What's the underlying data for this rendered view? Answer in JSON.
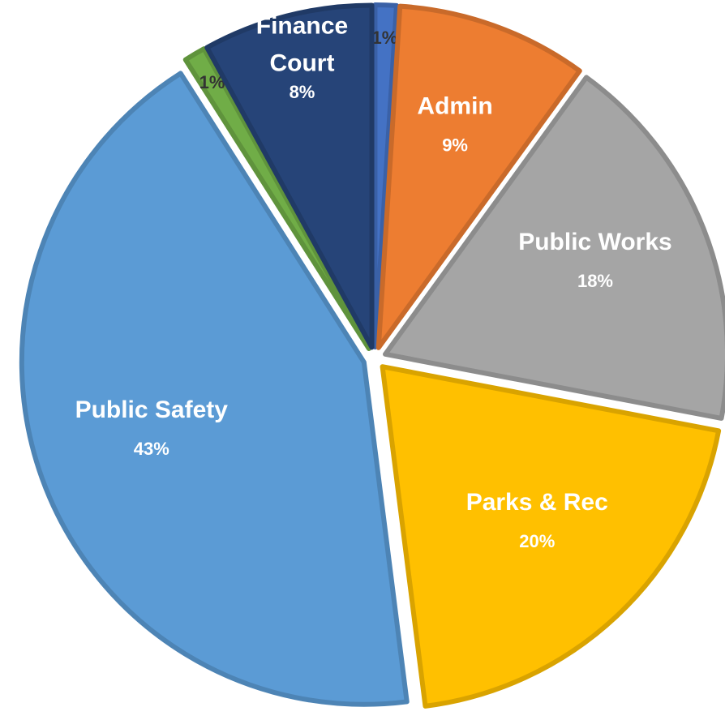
{
  "chart_data": {
    "type": "pie",
    "categories": [
      null,
      "Admin",
      "Public Works",
      "Parks & Rec",
      "Public Safety",
      null,
      "Finance Court"
    ],
    "values": [
      1,
      9,
      18,
      20,
      43,
      1,
      8
    ],
    "value_labels": [
      "1%",
      "9%",
      "18%",
      "20%",
      "43%",
      "1%",
      "8%"
    ],
    "colors": [
      "#4472c4",
      "#ed7d31",
      "#a5a5a5",
      "#ffc000",
      "#5b9bd5",
      "#70ad47",
      "#264478"
    ]
  }
}
